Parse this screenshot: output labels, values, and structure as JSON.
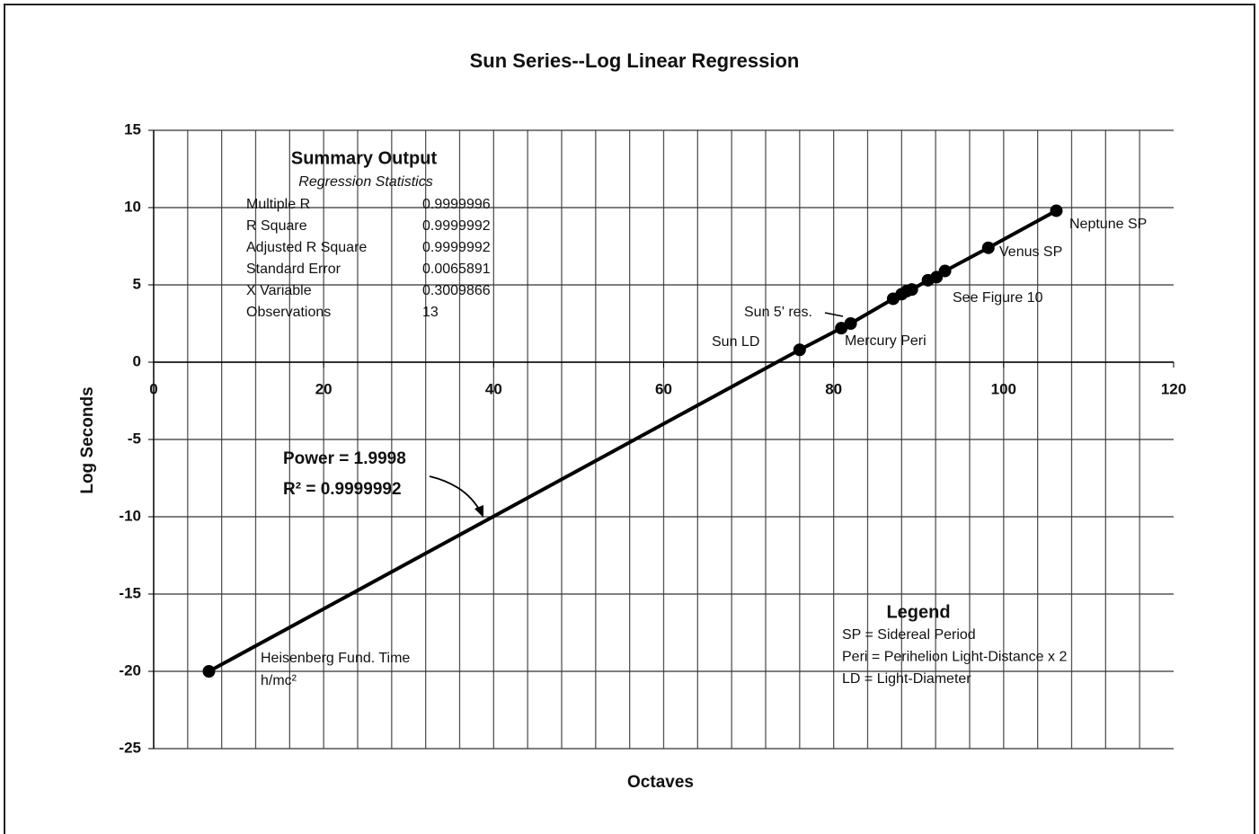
{
  "chart_data": {
    "type": "line",
    "title": "Sun Series--Log Linear Regression",
    "x_label": "Octaves",
    "y_label": "Log Seconds",
    "x": [
      6.5,
      76,
      80.9,
      82,
      87,
      88,
      88.6,
      89.2,
      91.1,
      92.1,
      93.1,
      98.2,
      106.2
    ],
    "series": [
      {
        "name": "Sun Series",
        "color": "#000000",
        "values": [
          -20,
          0.8,
          2.2,
          2.5,
          4.1,
          4.4,
          4.6,
          4.7,
          5.3,
          5.5,
          5.9,
          7.4,
          9.8
        ]
      }
    ],
    "xlim": [
      0,
      120
    ],
    "xticks": [
      0,
      20,
      40,
      60,
      80,
      100,
      120
    ],
    "ylim": [
      -25,
      15
    ],
    "yticks": [
      -25,
      -20,
      -15,
      -10,
      -5,
      0,
      5,
      10,
      15
    ],
    "x_minor_step": 4,
    "grid": true,
    "annotations": [
      "Neptune SP",
      "Venus SP",
      "See Figure 10",
      "Sun 5' res.",
      "Mercury Peri",
      "Sun LD",
      "Heisenberg Fund. Time",
      "h/mc²",
      "Power = 1.9998",
      "R² = 0.9999992"
    ],
    "summary": {
      "title": "Summary Output",
      "subtitle": "Regression Statistics",
      "rows": [
        [
          "Multiple R",
          0.9999996
        ],
        [
          "R Square",
          0.9999992
        ],
        [
          "Adjusted R Square",
          0.9999992
        ],
        [
          "Standard Error",
          0.0065891
        ],
        [
          "X Variable",
          0.3009866
        ],
        [
          "Observations",
          13
        ]
      ]
    },
    "legend": {
      "title": "Legend",
      "lines": [
        "SP = Sidereal Period",
        "Peri = Perihelion Light-Distance x 2",
        "LD = Light-Diameter"
      ]
    }
  }
}
